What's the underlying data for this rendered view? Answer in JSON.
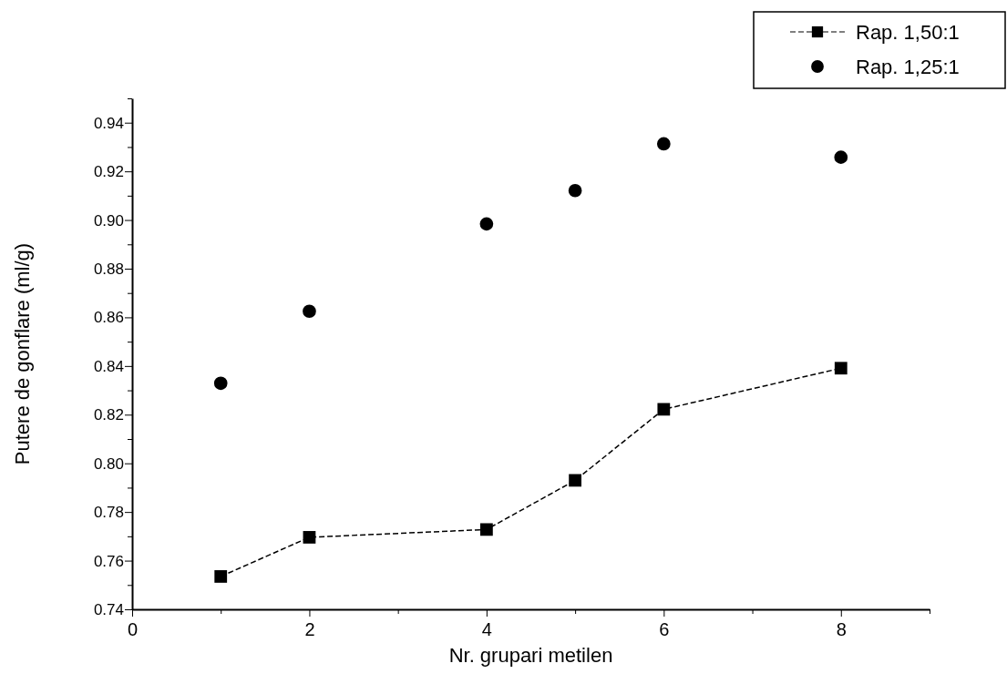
{
  "chart_data": {
    "type": "line",
    "xlabel": "Nr. grupari metilen",
    "ylabel": "Putere de gonflare (ml/g)",
    "x": [
      1,
      2,
      4,
      5,
      6,
      8
    ],
    "series": [
      {
        "name": "Rap. 1,50:1",
        "color": "#000000",
        "marker": "square",
        "line_style": "dashed",
        "values": [
          0.7535,
          0.7696,
          0.7728,
          0.793,
          0.8222,
          0.8391
        ]
      },
      {
        "name": "Rap. 1,25:1",
        "color": "#000000",
        "type": "scatter",
        "marker": "circle",
        "values": [
          0.8329,
          0.8625,
          0.8984,
          0.9121,
          0.9313,
          0.9258
        ]
      }
    ],
    "xlim": [
      0,
      9
    ],
    "ylim": [
      0.74,
      0.95
    ],
    "xticks": [
      0,
      {
        "value": 1,
        "label": null
      },
      2,
      {
        "value": 3,
        "label": null
      },
      4,
      {
        "value": 5,
        "label": null
      },
      6,
      {
        "value": 7,
        "label": null
      },
      8,
      {
        "value": 9,
        "label": null
      }
    ],
    "yticks": [
      {
        "value": 0.74,
        "label": "0.74"
      },
      {
        "value": 0.75,
        "label": null
      },
      {
        "value": 0.76,
        "label": "0.76"
      },
      {
        "value": 0.77,
        "label": null
      },
      {
        "value": 0.78,
        "label": "0.78"
      },
      {
        "value": 0.79,
        "label": null
      },
      {
        "value": 0.8,
        "label": "0.80"
      },
      {
        "value": 0.81,
        "label": null
      },
      {
        "value": 0.82,
        "label": "0.82"
      },
      {
        "value": 0.83,
        "label": null
      },
      {
        "value": 0.84,
        "label": "0.84"
      },
      {
        "value": 0.85,
        "label": null
      },
      {
        "value": 0.86,
        "label": "0.86"
      },
      {
        "value": 0.87,
        "label": null
      },
      {
        "value": 0.88,
        "label": "0.88"
      },
      {
        "value": 0.89,
        "label": null
      },
      {
        "value": 0.9,
        "label": "0.90"
      },
      {
        "value": 0.91,
        "label": null
      },
      {
        "value": 0.92,
        "label": "0.92"
      },
      {
        "value": 0.93,
        "label": null
      },
      {
        "value": 0.94,
        "label": "0.94"
      },
      {
        "value": 0.95,
        "label": null
      }
    ],
    "grid": false,
    "legend": "top right"
  }
}
